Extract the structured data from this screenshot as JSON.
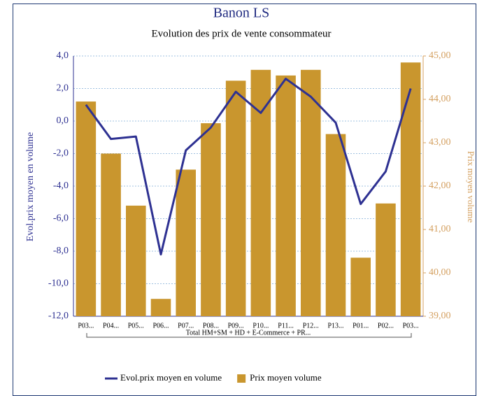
{
  "chart_data": {
    "type": "bar-line",
    "title": "Banon LS",
    "subtitle": "Evolution des prix de vente consommateur",
    "y_label": "Evol.prix moyen en volume",
    "y2_label": "Prix moyen volume",
    "group_label": "Total HM+SM + HD + E-Commerce + PR...",
    "categories": [
      "P03...",
      "P04...",
      "P05...",
      "P06...",
      "P07...",
      "P08...",
      "P09...",
      "P10...",
      "P11...",
      "P12...",
      "P13...",
      "P01...",
      "P02...",
      "P03..."
    ],
    "series": [
      {
        "name": "Evol.prix moyen en volume",
        "type": "line",
        "color": "#2e3192",
        "axis": "y",
        "values": [
          1.0,
          -1.1,
          -0.95,
          -8.2,
          -1.8,
          -0.4,
          1.8,
          0.5,
          2.6,
          1.5,
          -0.1,
          -5.1,
          -3.1,
          2.0
        ]
      },
      {
        "name": "Prix moyen volume",
        "type": "bar",
        "color": "#c9962e",
        "axis": "y2",
        "values": [
          43.95,
          42.75,
          41.55,
          39.4,
          42.38,
          43.45,
          44.43,
          44.68,
          44.55,
          44.68,
          43.2,
          40.35,
          41.6,
          44.85
        ]
      }
    ],
    "ylim": [
      -12,
      4
    ],
    "yticks": [
      {
        "value": 4,
        "label": "4,0"
      },
      {
        "value": 2,
        "label": "2,0"
      },
      {
        "value": 0,
        "label": "0,0"
      },
      {
        "value": -2,
        "label": "-2,0"
      },
      {
        "value": -4,
        "label": "-4,0"
      },
      {
        "value": -6,
        "label": "-6,0"
      },
      {
        "value": -8,
        "label": "-8,0"
      },
      {
        "value": -10,
        "label": "-10,0"
      },
      {
        "value": -12,
        "label": "-12,0"
      }
    ],
    "y2lim": [
      39,
      45
    ],
    "y2ticks": [
      {
        "value": 45,
        "label": "45,00"
      },
      {
        "value": 44,
        "label": "44,00"
      },
      {
        "value": 43,
        "label": "43,00"
      },
      {
        "value": 42,
        "label": "42,00"
      },
      {
        "value": 41,
        "label": "41,00"
      },
      {
        "value": 40,
        "label": "40,00"
      },
      {
        "value": 39,
        "label": "39,00"
      }
    ],
    "grid": true,
    "legend": "bottom"
  }
}
